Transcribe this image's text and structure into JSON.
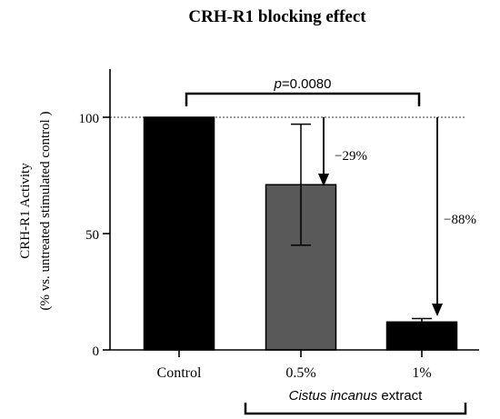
{
  "chart_data": {
    "type": "bar",
    "title": "CRH-R1 blocking effect",
    "ylabel_line1": "CRH-R1 Activity",
    "ylabel_line2": "(% vs.  untreated stimulated control )",
    "ylim": [
      0,
      120
    ],
    "yticks": [
      0,
      50,
      100
    ],
    "categories": [
      "Control",
      "0.5%",
      "1%"
    ],
    "values": [
      100,
      71,
      12
    ],
    "error_low": [
      100,
      45,
      10.5
    ],
    "error_high": [
      100,
      97,
      13.5
    ],
    "colors": [
      "#000000",
      "#595959",
      "#000000"
    ],
    "reference_line": 100,
    "annotations": {
      "pvalue_prefix": "p",
      "pvalue_rest": "=0.0080",
      "drop_05": "−29%",
      "drop_1": "−88%"
    },
    "group_label": {
      "italic": "Cistus incanus",
      "rest": " extract"
    }
  }
}
